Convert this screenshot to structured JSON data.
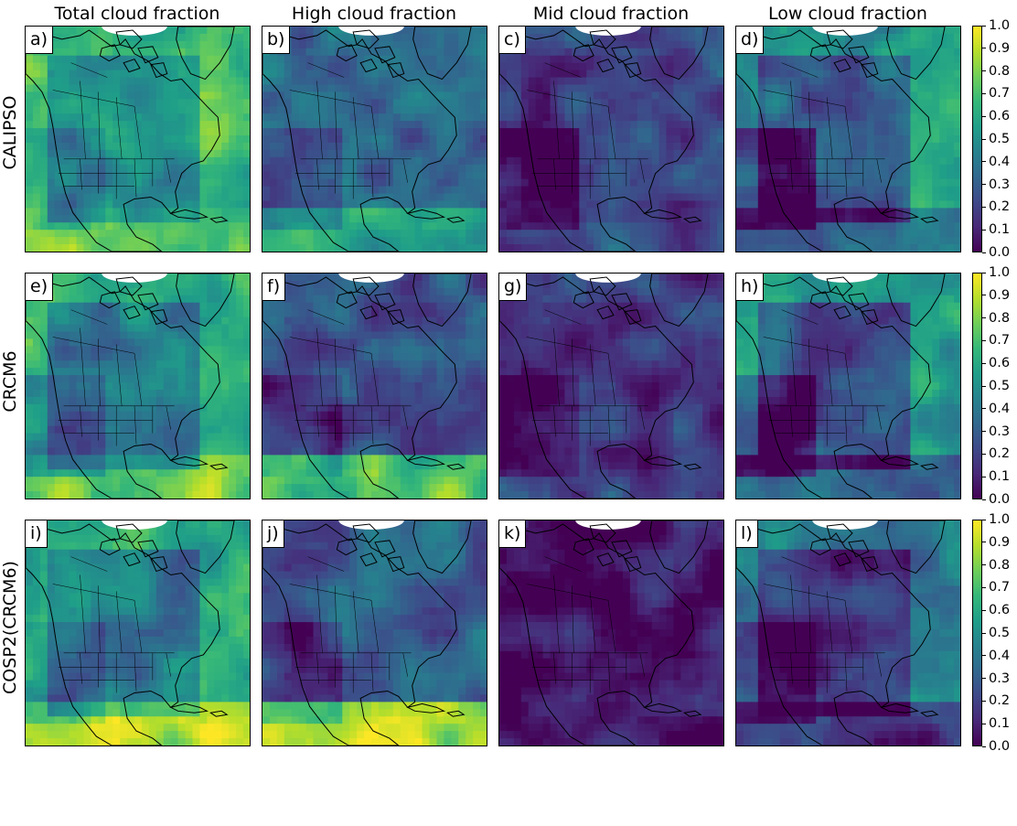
{
  "columns": [
    "Total cloud fraction",
    "High cloud fraction",
    "Mid cloud fraction",
    "Low cloud fraction"
  ],
  "rows": [
    "CALIPSO",
    "CRCM6",
    "COSP2(CRCM6)"
  ],
  "panels": [
    {
      "label": "a)",
      "row": "CALIPSO",
      "column": "Total cloud fraction",
      "base": 0.7,
      "land_offset": -0.2,
      "southwest_offset": -0.1,
      "tropics_offset": 0.05
    },
    {
      "label": "b)",
      "row": "CALIPSO",
      "column": "High cloud fraction",
      "base": 0.35,
      "land_offset": -0.02,
      "southwest_offset": -0.15,
      "tropics_offset": 0.25
    },
    {
      "label": "c)",
      "row": "CALIPSO",
      "column": "Mid cloud fraction",
      "base": 0.22,
      "land_offset": -0.05,
      "southwest_offset": -0.18,
      "tropics_offset": 0.02
    },
    {
      "label": "d)",
      "row": "CALIPSO",
      "column": "Low cloud fraction",
      "base": 0.55,
      "land_offset": -0.25,
      "southwest_offset": -0.3,
      "tropics_offset": -0.2
    },
    {
      "label": "e)",
      "row": "CRCM6",
      "column": "Total cloud fraction",
      "base": 0.65,
      "land_offset": -0.22,
      "southwest_offset": -0.15,
      "tropics_offset": 0.15
    },
    {
      "label": "f)",
      "row": "CRCM6",
      "column": "High cloud fraction",
      "base": 0.28,
      "land_offset": -0.02,
      "southwest_offset": -0.12,
      "tropics_offset": 0.45
    },
    {
      "label": "g)",
      "row": "CRCM6",
      "column": "Mid cloud fraction",
      "base": 0.2,
      "land_offset": -0.04,
      "southwest_offset": -0.12,
      "tropics_offset": 0.0
    },
    {
      "label": "h)",
      "row": "CRCM6",
      "column": "Low cloud fraction",
      "base": 0.55,
      "land_offset": -0.3,
      "southwest_offset": -0.25,
      "tropics_offset": -0.25
    },
    {
      "label": "i)",
      "row": "COSP2(CRCM6)",
      "column": "Total cloud fraction",
      "base": 0.62,
      "land_offset": -0.22,
      "southwest_offset": -0.12,
      "tropics_offset": 0.25
    },
    {
      "label": "j)",
      "row": "COSP2(CRCM6)",
      "column": "High cloud fraction",
      "base": 0.3,
      "land_offset": -0.02,
      "southwest_offset": -0.15,
      "tropics_offset": 0.55
    },
    {
      "label": "k)",
      "row": "COSP2(CRCM6)",
      "column": "Mid cloud fraction",
      "base": 0.03,
      "land_offset": 0.02,
      "southwest_offset": 0.0,
      "tropics_offset": -0.02
    },
    {
      "label": "l)",
      "row": "COSP2(CRCM6)",
      "column": "Low cloud fraction",
      "base": 0.4,
      "land_offset": -0.25,
      "southwest_offset": -0.2,
      "tropics_offset": -0.25
    }
  ],
  "colorbar": {
    "colormap": "viridis",
    "range": [
      0.0,
      1.0
    ],
    "ticks": [
      "1.0",
      "0.9",
      "0.8",
      "0.7",
      "0.6",
      "0.5",
      "0.4",
      "0.3",
      "0.2",
      "0.1",
      "0.0"
    ]
  },
  "colors": {
    "coastline": "#000000",
    "borders": "#000000",
    "no_data": "#ffffff"
  }
}
